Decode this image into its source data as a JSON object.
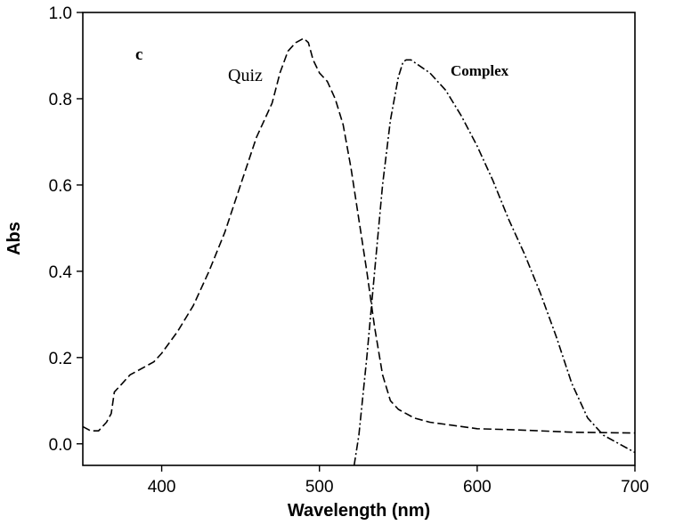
{
  "chart_data": {
    "type": "line",
    "panel_label": "c",
    "xlabel": "Wavelength (nm)",
    "ylabel": "Abs",
    "xlim": [
      350,
      700
    ],
    "ylim": [
      -0.05,
      1.0
    ],
    "xticks": [
      400,
      500,
      600,
      700
    ],
    "yticks": [
      0.0,
      0.2,
      0.4,
      0.6,
      0.8,
      1.0
    ],
    "xtick_labels": [
      "400",
      "500",
      "600",
      "700"
    ],
    "ytick_labels": [
      "0.0",
      "0.2",
      "0.4",
      "0.6",
      "0.8",
      "1.0"
    ],
    "grid": false,
    "legend": "none",
    "series": [
      {
        "name": "Quiz",
        "style": "dashed",
        "color": "#000000",
        "x": [
          350,
          355,
          360,
          365,
          368,
          370,
          375,
          380,
          385,
          390,
          395,
          400,
          410,
          420,
          430,
          440,
          450,
          460,
          470,
          475,
          480,
          485,
          490,
          493,
          496,
          500,
          505,
          510,
          515,
          520,
          525,
          530,
          535,
          540,
          545,
          550,
          555,
          560,
          570,
          580,
          600,
          620,
          640,
          660,
          680,
          700
        ],
        "y": [
          0.04,
          0.03,
          0.03,
          0.05,
          0.07,
          0.12,
          0.14,
          0.16,
          0.17,
          0.18,
          0.19,
          0.21,
          0.26,
          0.32,
          0.4,
          0.49,
          0.6,
          0.71,
          0.79,
          0.86,
          0.91,
          0.93,
          0.94,
          0.93,
          0.89,
          0.86,
          0.84,
          0.8,
          0.74,
          0.64,
          0.52,
          0.4,
          0.27,
          0.16,
          0.1,
          0.08,
          0.07,
          0.06,
          0.05,
          0.045,
          0.035,
          0.033,
          0.03,
          0.027,
          0.026,
          0.025
        ]
      },
      {
        "name": "Complex",
        "style": "dash-dot",
        "color": "#000000",
        "x": [
          522,
          525,
          530,
          535,
          540,
          545,
          550,
          553,
          555,
          558,
          562,
          570,
          580,
          590,
          600,
          610,
          620,
          630,
          640,
          650,
          660,
          670,
          680,
          690,
          700
        ],
        "y": [
          -0.05,
          0.02,
          0.2,
          0.4,
          0.6,
          0.75,
          0.85,
          0.885,
          0.89,
          0.89,
          0.88,
          0.86,
          0.82,
          0.76,
          0.69,
          0.61,
          0.52,
          0.44,
          0.35,
          0.25,
          0.14,
          0.06,
          0.02,
          0.0,
          -0.02
        ]
      }
    ],
    "annotations": [
      "c",
      "Quiz",
      "Complex"
    ]
  }
}
